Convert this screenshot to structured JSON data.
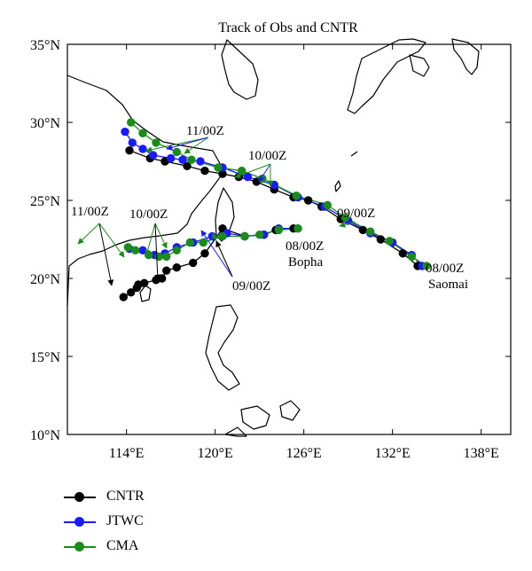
{
  "chart_data": {
    "type": "line",
    "title": "Track of Obs and CNTR",
    "xlim": [
      110,
      140
    ],
    "ylim": [
      10,
      35
    ],
    "x_ticks": [
      {
        "value": 114,
        "label": "114°E"
      },
      {
        "value": 120,
        "label": "120°E"
      },
      {
        "value": 126,
        "label": "126°E"
      },
      {
        "value": 132,
        "label": "132°E"
      },
      {
        "value": 138,
        "label": "138°E"
      }
    ],
    "y_ticks": [
      {
        "value": 10,
        "label": "10°N"
      },
      {
        "value": 15,
        "label": "15°N"
      },
      {
        "value": 20,
        "label": "20°N"
      },
      {
        "value": 25,
        "label": "25°N"
      },
      {
        "value": 30,
        "label": "30°N"
      },
      {
        "value": 35,
        "label": "35°N"
      }
    ],
    "series": [
      {
        "name": "CNTR",
        "color": "#000000",
        "tracks": [
          {
            "storm": "Saomai",
            "points": [
              [
                114.2,
                28.2
              ],
              [
                115.6,
                27.7
              ],
              [
                116.6,
                27.5
              ],
              [
                118.1,
                27.2
              ],
              [
                119.3,
                26.9
              ],
              [
                120.5,
                26.7
              ],
              [
                121.6,
                26.5
              ],
              [
                122.8,
                26.2
              ],
              [
                124,
                25.7
              ],
              [
                125.3,
                25.2
              ],
              [
                126.3,
                25
              ],
              [
                127.2,
                24.6
              ],
              [
                128.5,
                23.8
              ],
              [
                130,
                23.1
              ],
              [
                131.2,
                22.5
              ],
              [
                132.7,
                21.6
              ],
              [
                133.7,
                20.8
              ]
            ]
          },
          {
            "storm": "Bopha",
            "points": [
              [
                125.3,
                23.2
              ],
              [
                124.1,
                23.1
              ],
              [
                123.3,
                22.8
              ],
              [
                122,
                22.7
              ],
              [
                120.5,
                23.2
              ],
              [
                119.3,
                21.6
              ],
              [
                118.5,
                21
              ],
              [
                117.4,
                20.7
              ],
              [
                116.7,
                20.5
              ],
              [
                116.4,
                20
              ],
              [
                116,
                19.9
              ],
              [
                115.2,
                19.7
              ],
              [
                114.8,
                19.6
              ],
              [
                114.7,
                19.4
              ],
              [
                114.3,
                19.1
              ],
              [
                113.8,
                18.8
              ]
            ]
          }
        ]
      },
      {
        "name": "JTWC",
        "color": "#1a1aff",
        "tracks": [
          {
            "storm": "Saomai",
            "points": [
              [
                113.9,
                29.4
              ],
              [
                114.4,
                28.7
              ],
              [
                115.1,
                28.3
              ],
              [
                115.8,
                27.9
              ],
              [
                117,
                27.7
              ],
              [
                117.8,
                27.6
              ],
              [
                119,
                27.5
              ],
              [
                120.5,
                27.1
              ],
              [
                122.2,
                26.5
              ],
              [
                124,
                26
              ],
              [
                125.6,
                25.2
              ],
              [
                127.4,
                24.6
              ],
              [
                129,
                23.7
              ],
              [
                130.5,
                22.9
              ],
              [
                132,
                22.3
              ],
              [
                133.3,
                21.5
              ],
              [
                134,
                20.8
              ]
            ]
          },
          {
            "storm": "Bopha",
            "points": [
              [
                125.6,
                23.2
              ],
              [
                124.3,
                23.2
              ],
              [
                123.3,
                22.8
              ],
              [
                122,
                22.7
              ],
              [
                120.8,
                22.9
              ],
              [
                119.8,
                22.7
              ],
              [
                118.5,
                22.3
              ],
              [
                117.4,
                22
              ],
              [
                116.6,
                21.6
              ],
              [
                115.9,
                21.5
              ],
              [
                115.1,
                21.8
              ],
              [
                114.2,
                21.9
              ]
            ]
          }
        ]
      },
      {
        "name": "CMA",
        "color": "#1a8c1a",
        "tracks": [
          {
            "storm": "Saomai",
            "points": [
              [
                114.3,
                30
              ],
              [
                115.1,
                29.3
              ],
              [
                116,
                28.7
              ],
              [
                117.4,
                28.1
              ],
              [
                118.4,
                27.6
              ],
              [
                120.2,
                27.1
              ],
              [
                121.8,
                26.9
              ],
              [
                123.2,
                26.4
              ],
              [
                125.5,
                25.3
              ],
              [
                127.6,
                24.7
              ],
              [
                128.8,
                23.9
              ],
              [
                130.5,
                23
              ],
              [
                131.8,
                22.4
              ],
              [
                133.3,
                21.4
              ],
              [
                134.3,
                20.8
              ]
            ]
          },
          {
            "storm": "Bopha",
            "points": [
              [
                125.6,
                23.2
              ],
              [
                124.3,
                23.1
              ],
              [
                123,
                22.8
              ],
              [
                122,
                22.7
              ],
              [
                120.5,
                22.7
              ],
              [
                119.2,
                22.3
              ],
              [
                118.3,
                22.3
              ],
              [
                117.4,
                21.8
              ],
              [
                116.7,
                21.4
              ],
              [
                116.2,
                21.4
              ],
              [
                115.5,
                21.5
              ],
              [
                114.6,
                21.8
              ],
              [
                114.1,
                22
              ]
            ]
          }
        ]
      }
    ],
    "annotations": [
      {
        "id": "a11-north",
        "text": "11/00Z"
      },
      {
        "id": "a10-north",
        "text": "10/00Z"
      },
      {
        "id": "a09-east",
        "text": "09/00Z"
      },
      {
        "id": "a08-saomai-time",
        "text": "08/00Z"
      },
      {
        "id": "a08-saomai-name",
        "text": "Saomai"
      },
      {
        "id": "a11-west",
        "text": "11/00Z"
      },
      {
        "id": "a10-west",
        "text": "10/00Z"
      },
      {
        "id": "a08-bopha-time",
        "text": "08/00Z"
      },
      {
        "id": "a08-bopha-name",
        "text": "Bopha"
      },
      {
        "id": "a09-south",
        "text": "09/00Z"
      }
    ],
    "legend_position": "bottom-left"
  }
}
